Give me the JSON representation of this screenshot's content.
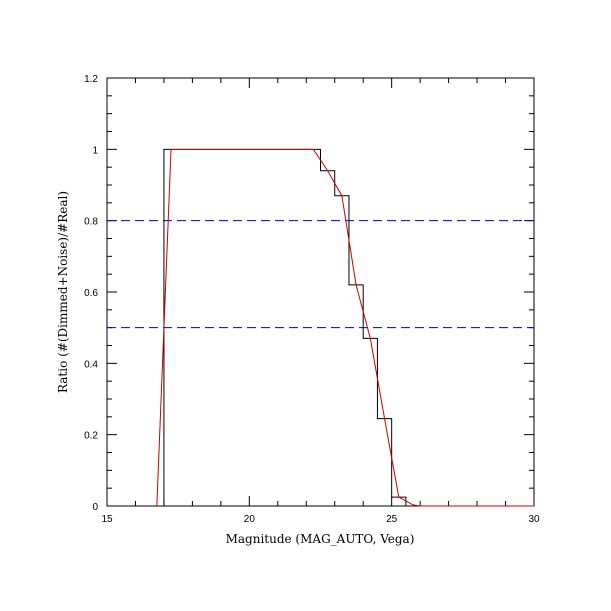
{
  "chart_data": {
    "type": "line",
    "xlabel": "Magnitude (MAG_AUTO, Vega)",
    "ylabel": "Ratio (#(Dimmed+Noise)/#Real)",
    "xlim": [
      15,
      30
    ],
    "ylim": [
      0,
      1.2
    ],
    "x_ticks": [
      "15",
      "20",
      "25",
      "30"
    ],
    "y_ticks": [
      "0",
      "0.2",
      "0.4",
      "0.6",
      "0.8",
      "1",
      "1.2"
    ],
    "x_tick_values": [
      15,
      20,
      25,
      30
    ],
    "y_tick_values": [
      0,
      0.2,
      0.4,
      0.6,
      0.8,
      1.0,
      1.2
    ],
    "grid": false,
    "reference_lines": [
      {
        "y": 0.8,
        "style": "dashed",
        "color": "#0000cc"
      },
      {
        "y": 0.5,
        "style": "dashed",
        "color": "#0000cc"
      }
    ],
    "series": [
      {
        "style": "step",
        "color": "#000000",
        "x": [
          17.0,
          17.0,
          22.5,
          22.5,
          23.0,
          23.0,
          23.5,
          23.5,
          24.0,
          24.0,
          24.5,
          24.5,
          25.0,
          25.0,
          25.5,
          25.5,
          30.0
        ],
        "y": [
          0.0,
          1.0,
          1.0,
          0.94,
          0.94,
          0.87,
          0.87,
          0.62,
          0.62,
          0.47,
          0.47,
          0.245,
          0.245,
          0.025,
          0.025,
          0.0,
          0.0
        ]
      },
      {
        "style": "line",
        "color": "#cc0000",
        "x": [
          16.75,
          17.0,
          17.25,
          22.25,
          22.75,
          23.25,
          23.75,
          24.25,
          24.75,
          25.25,
          25.75,
          26.0,
          30.0
        ],
        "y": [
          0.0,
          0.5,
          1.0,
          1.0,
          0.94,
          0.87,
          0.62,
          0.47,
          0.245,
          0.025,
          0.003,
          0.0,
          0.0
        ]
      }
    ]
  }
}
